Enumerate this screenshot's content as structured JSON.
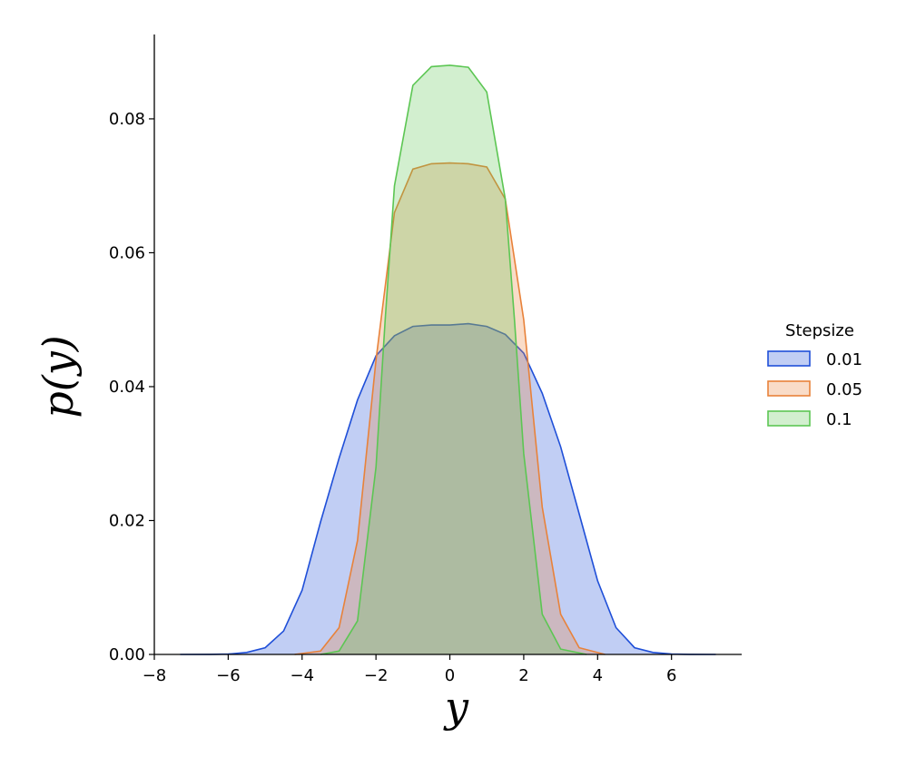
{
  "chart_data": {
    "type": "area",
    "xlabel": "y",
    "ylabel": "p(y)",
    "legend_title": "Stepsize",
    "legend": "center right",
    "xlim": [
      -8,
      7.9
    ],
    "ylim": [
      0,
      0.0926
    ],
    "xticks": [
      {
        "value": -8,
        "label": "−8"
      },
      {
        "value": -6,
        "label": "−6"
      },
      {
        "value": -4,
        "label": "−4"
      },
      {
        "value": -2,
        "label": "−2"
      },
      0,
      2,
      4,
      6
    ],
    "yticks": [
      {
        "value": 0,
        "label": "0.00"
      },
      0.02,
      0.04,
      0.06,
      0.08
    ],
    "series": [
      {
        "name": "0.01",
        "color": "#1f4fd8",
        "x": [
          -7.3,
          -6.5,
          -6,
          -5.5,
          -5,
          -4.5,
          -4,
          -3.5,
          -3,
          -2.5,
          -2,
          -1.5,
          -1,
          -0.5,
          0,
          0.5,
          1,
          1.5,
          2,
          2.5,
          3,
          3.5,
          4,
          4.5,
          5,
          5.5,
          6,
          6.5,
          7.2
        ],
        "values": [
          0,
          1e-05,
          5e-05,
          0.0003,
          0.001,
          0.0035,
          0.0096,
          0.0198,
          0.0293,
          0.038,
          0.0446,
          0.0476,
          0.049,
          0.0492,
          0.0492,
          0.0494,
          0.049,
          0.0478,
          0.045,
          0.039,
          0.031,
          0.021,
          0.011,
          0.004,
          0.001,
          0.0003,
          5e-05,
          1e-05,
          0
        ]
      },
      {
        "name": "0.05",
        "color": "#e8823a",
        "x": [
          -4.2,
          -3.5,
          -3,
          -2.5,
          -2,
          -1.5,
          -1,
          -0.5,
          0,
          0.5,
          1,
          1.5,
          2,
          2.5,
          3,
          3.5,
          4.2
        ],
        "values": [
          0,
          0.0005,
          0.004,
          0.017,
          0.044,
          0.066,
          0.0725,
          0.0733,
          0.0734,
          0.0733,
          0.0728,
          0.068,
          0.05,
          0.022,
          0.006,
          0.001,
          0
        ]
      },
      {
        "name": "0.1",
        "color": "#5cc653",
        "x": [
          -3.5,
          -3,
          -2.5,
          -2,
          -1.75,
          -1.5,
          -1,
          -0.5,
          0,
          0.5,
          1,
          1.5,
          1.75,
          2,
          2.5,
          3,
          3.7
        ],
        "values": [
          0,
          0.0005,
          0.005,
          0.028,
          0.05,
          0.07,
          0.085,
          0.0878,
          0.088,
          0.0877,
          0.084,
          0.068,
          0.05,
          0.03,
          0.006,
          0.0008,
          0
        ]
      }
    ]
  }
}
